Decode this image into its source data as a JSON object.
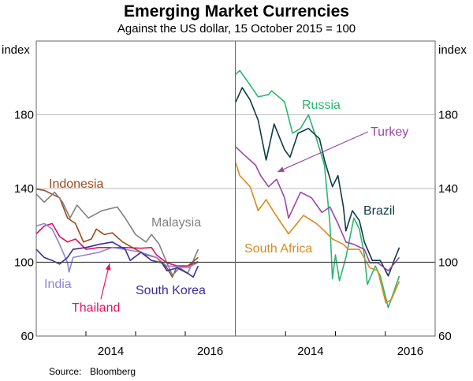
{
  "chart_data": {
    "type": "line",
    "title": "Emerging Market Currencies",
    "subtitle": "Against the US dollar, 15 October 2015  = 100",
    "ylabel_left": "index",
    "ylabel_right": "index",
    "ylim": [
      60,
      220
    ],
    "yticks": [
      60,
      100,
      140,
      180
    ],
    "xlim": [
      2013.0,
      2017.0
    ],
    "xtick_labels": [
      "2014",
      "2016"
    ],
    "grid": true,
    "reference_line": 100,
    "source_label": "Source:",
    "source": "Bloomberg",
    "panels": [
      {
        "series": [
          {
            "name": "Indonesia",
            "color": "#9b4a1e",
            "points": [
              [
                2013.0,
                139.7
              ],
              [
                2013.16,
                139
              ],
              [
                2013.47,
                135
              ],
              [
                2013.63,
                124
              ],
              [
                2013.79,
                121
              ],
              [
                2013.95,
                111
              ],
              [
                2014.11,
                112.6
              ],
              [
                2014.21,
                118
              ],
              [
                2014.37,
                115
              ],
              [
                2014.53,
                116
              ],
              [
                2014.74,
                111
              ],
              [
                2015.0,
                107
              ],
              [
                2015.21,
                104
              ],
              [
                2015.42,
                102.6
              ],
              [
                2015.63,
                97
              ],
              [
                2015.74,
                92
              ],
              [
                2015.84,
                98
              ],
              [
                2016.05,
                98
              ],
              [
                2016.26,
                102.6
              ]
            ]
          },
          {
            "name": "Malaysia",
            "color": "#808080",
            "points": [
              [
                2013.0,
                137
              ],
              [
                2013.16,
                132.6
              ],
              [
                2013.37,
                138
              ],
              [
                2013.53,
                132.6
              ],
              [
                2013.68,
                124
              ],
              [
                2013.82,
                131
              ],
              [
                2014.05,
                124
              ],
              [
                2014.32,
                128
              ],
              [
                2014.63,
                130
              ],
              [
                2014.79,
                124
              ],
              [
                2015.0,
                115
              ],
              [
                2015.21,
                111
              ],
              [
                2015.32,
                115
              ],
              [
                2015.47,
                110
              ],
              [
                2015.63,
                99.7
              ],
              [
                2015.74,
                93
              ],
              [
                2015.89,
                97
              ],
              [
                2016.05,
                94
              ],
              [
                2016.26,
                107
              ]
            ]
          },
          {
            "name": "Thailand",
            "color": "#e2125f",
            "points": [
              [
                2013.0,
                115.4
              ],
              [
                2013.16,
                119.7
              ],
              [
                2013.32,
                121
              ],
              [
                2013.47,
                114
              ],
              [
                2013.63,
                111
              ],
              [
                2013.79,
                112.6
              ],
              [
                2014.0,
                107
              ],
              [
                2014.26,
                108
              ],
              [
                2014.53,
                108
              ],
              [
                2014.79,
                108
              ],
              [
                2015.11,
                107.6
              ],
              [
                2015.32,
                108
              ],
              [
                2015.42,
                104
              ],
              [
                2015.63,
                99.7
              ],
              [
                2015.84,
                98
              ],
              [
                2016.05,
                98
              ],
              [
                2016.26,
                100.4
              ]
            ]
          },
          {
            "name": "India",
            "color": "#8b85d2",
            "points": [
              [
                2013.0,
                119.7
              ],
              [
                2013.16,
                121
              ],
              [
                2013.32,
                118
              ],
              [
                2013.47,
                109.7
              ],
              [
                2013.63,
                99.7
              ],
              [
                2013.66,
                94.7
              ],
              [
                2013.74,
                102.6
              ],
              [
                2014.0,
                104
              ],
              [
                2014.26,
                105.4
              ],
              [
                2014.53,
                108
              ],
              [
                2014.79,
                107
              ],
              [
                2015.11,
                105.4
              ],
              [
                2015.42,
                102.6
              ],
              [
                2015.63,
                98
              ],
              [
                2015.84,
                97.6
              ],
              [
                2016.05,
                97
              ],
              [
                2016.26,
                100
              ]
            ]
          },
          {
            "name": "South Korea",
            "color": "#3a2c9c",
            "points": [
              [
                2013.0,
                107
              ],
              [
                2013.16,
                102.6
              ],
              [
                2013.32,
                101
              ],
              [
                2013.47,
                99
              ],
              [
                2013.63,
                102.6
              ],
              [
                2013.74,
                107
              ],
              [
                2014.0,
                108
              ],
              [
                2014.26,
                109.7
              ],
              [
                2014.53,
                111
              ],
              [
                2014.79,
                107
              ],
              [
                2014.89,
                101
              ],
              [
                2015.11,
                105.4
              ],
              [
                2015.32,
                101
              ],
              [
                2015.53,
                99.7
              ],
              [
                2015.63,
                95.4
              ],
              [
                2015.84,
                97
              ],
              [
                2016.05,
                94
              ],
              [
                2016.16,
                92
              ],
              [
                2016.26,
                98
              ]
            ]
          }
        ]
      },
      {
        "series": [
          {
            "name": "Russia",
            "color": "#2bb673",
            "points": [
              [
                2013.0,
                201.9
              ],
              [
                2013.08,
                204
              ],
              [
                2013.24,
                198
              ],
              [
                2013.45,
                189.7
              ],
              [
                2013.66,
                191
              ],
              [
                2013.72,
                193
              ],
              [
                2013.98,
                187
              ],
              [
                2014.14,
                170
              ],
              [
                2014.3,
                172.6
              ],
              [
                2014.46,
                180
              ],
              [
                2014.62,
                167
              ],
              [
                2014.78,
                152.6
              ],
              [
                2014.89,
                121
              ],
              [
                2014.94,
                91
              ],
              [
                2015.0,
                104
              ],
              [
                2015.08,
                90
              ],
              [
                2015.21,
                102.6
              ],
              [
                2015.37,
                124
              ],
              [
                2015.48,
                118
              ],
              [
                2015.58,
                104
              ],
              [
                2015.64,
                88
              ],
              [
                2015.8,
                98
              ],
              [
                2015.9,
                92.6
              ],
              [
                2016.06,
                75.4
              ],
              [
                2016.17,
                84
              ],
              [
                2016.28,
                92.6
              ]
            ]
          },
          {
            "name": "Brazil",
            "color": "#0e3a48",
            "points": [
              [
                2013.0,
                186.9
              ],
              [
                2013.13,
                194.7
              ],
              [
                2013.29,
                188
              ],
              [
                2013.45,
                177
              ],
              [
                2013.61,
                155.4
              ],
              [
                2013.77,
                175
              ],
              [
                2013.98,
                161
              ],
              [
                2014.09,
                157
              ],
              [
                2014.25,
                170
              ],
              [
                2014.46,
                172.6
              ],
              [
                2014.68,
                167
              ],
              [
                2014.78,
                155.4
              ],
              [
                2014.94,
                141
              ],
              [
                2015.05,
                147
              ],
              [
                2015.16,
                130
              ],
              [
                2015.21,
                117
              ],
              [
                2015.34,
                128
              ],
              [
                2015.48,
                122.6
              ],
              [
                2015.58,
                111
              ],
              [
                2015.74,
                101
              ],
              [
                2015.9,
                101
              ],
              [
                2016.06,
                92.6
              ],
              [
                2016.2,
                102.6
              ],
              [
                2016.28,
                108
              ]
            ]
          },
          {
            "name": "Turkey",
            "color": "#9b46a8",
            "points": [
              [
                2013.0,
                162.6
              ],
              [
                2013.18,
                158
              ],
              [
                2013.4,
                152.6
              ],
              [
                2013.5,
                147
              ],
              [
                2013.66,
                141
              ],
              [
                2013.82,
                145
              ],
              [
                2013.98,
                135
              ],
              [
                2014.06,
                124
              ],
              [
                2014.3,
                138
              ],
              [
                2014.52,
                135
              ],
              [
                2014.73,
                127
              ],
              [
                2014.89,
                130
              ],
              [
                2015.05,
                121
              ],
              [
                2015.21,
                111
              ],
              [
                2015.37,
                109.7
              ],
              [
                2015.58,
                107
              ],
              [
                2015.69,
                99.7
              ],
              [
                2015.85,
                99.7
              ],
              [
                2016.06,
                95.4
              ],
              [
                2016.28,
                102.6
              ]
            ]
          },
          {
            "name": "South Africa",
            "color": "#d98b1e",
            "points": [
              [
                2013.0,
                154
              ],
              [
                2013.08,
                147
              ],
              [
                2013.29,
                141
              ],
              [
                2013.45,
                128
              ],
              [
                2013.61,
                134
              ],
              [
                2013.77,
                127
              ],
              [
                2014.06,
                115.4
              ],
              [
                2014.36,
                125.4
              ],
              [
                2014.62,
                121
              ],
              [
                2014.78,
                117
              ],
              [
                2014.94,
                112.6
              ],
              [
                2015.16,
                109.7
              ],
              [
                2015.26,
                107
              ],
              [
                2015.48,
                107
              ],
              [
                2015.69,
                97
              ],
              [
                2015.85,
                95.4
              ],
              [
                2016.01,
                78
              ],
              [
                2016.12,
                79.7
              ],
              [
                2016.28,
                89.7
              ]
            ]
          }
        ]
      }
    ]
  }
}
